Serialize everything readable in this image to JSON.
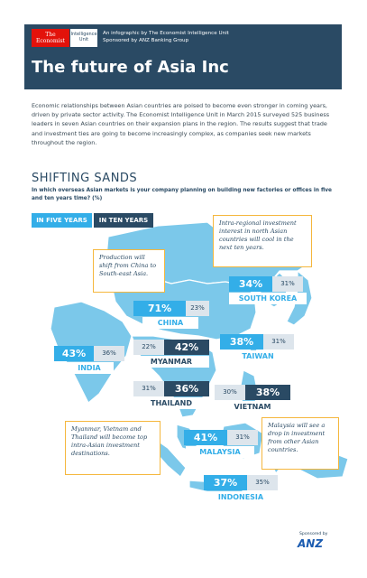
{
  "header": {
    "logo_line1": "The",
    "logo_line2": "Economist",
    "eiu_line1": "Intelligence",
    "eiu_line2": "Unit",
    "credit_line1": "An infographic by The Economist Intelligence Unit",
    "credit_line2": "Sponsored by ANZ Banking Group",
    "title": "The future of Asia Inc"
  },
  "intro": "Economic relationships between Asian countries are poised to become even stronger in coming years, driven by private sector activity. The Economist Intelligence Unit in March 2015 surveyed 525 business leaders in seven Asian countries on their expansion plans in the region. The results suggest that trade and investment ties are going to become increasingly complex, as companies seek new markets throughout the region.",
  "section": {
    "title": "SHIFTING SANDS",
    "question": "In which overseas Asian markets is your company planning on building new factories or offices in five and ten years time? (%)"
  },
  "tabs": {
    "five_years": "IN FIVE YEARS",
    "ten_years": "IN TEN YEARS"
  },
  "colors": {
    "navy": "#2a4a64",
    "five_years_blue": "#33aee8",
    "map_land": "#7bc8ea",
    "callout_border": "#f5b73d",
    "light_bar": "#dde5ec"
  },
  "countries": {
    "china": {
      "name": "CHINA",
      "five_years": "71%",
      "ten_years": "23%"
    },
    "south_korea": {
      "name": "SOUTH KOREA",
      "five_years": "34%",
      "ten_years": "31%"
    },
    "india": {
      "name": "INDIA",
      "five_years": "43%",
      "ten_years": "36%"
    },
    "myanmar": {
      "name": "MYANMAR",
      "five_years": "22%",
      "ten_years": "42%"
    },
    "taiwan": {
      "name": "TAIWAN",
      "five_years": "38%",
      "ten_years": "31%"
    },
    "thailand": {
      "name": "THAILAND",
      "five_years": "31%",
      "ten_years": "36%"
    },
    "vietnam": {
      "name": "VIETNAM",
      "five_years": "30%",
      "ten_years": "38%"
    },
    "malaysia": {
      "name": "MALAYSIA",
      "five_years": "41%",
      "ten_years": "31%"
    },
    "indonesia": {
      "name": "INDONESIA",
      "five_years": "37%",
      "ten_years": "35%"
    }
  },
  "callouts": {
    "intra_regional": "Intra-regional investment interest in north Asian countries will cool in the next ten years.",
    "production": "Production will shift from China to South-east Asia.",
    "myanmar_vietnam": "Myanmar, Vietnam and Thailand will become top intra-Asian investment destinations.",
    "malaysia": "Malaysia will see a drop in investment from other Asian countries."
  },
  "footer": {
    "sponsored_by": "Sponsored by",
    "brand": "ANZ"
  }
}
